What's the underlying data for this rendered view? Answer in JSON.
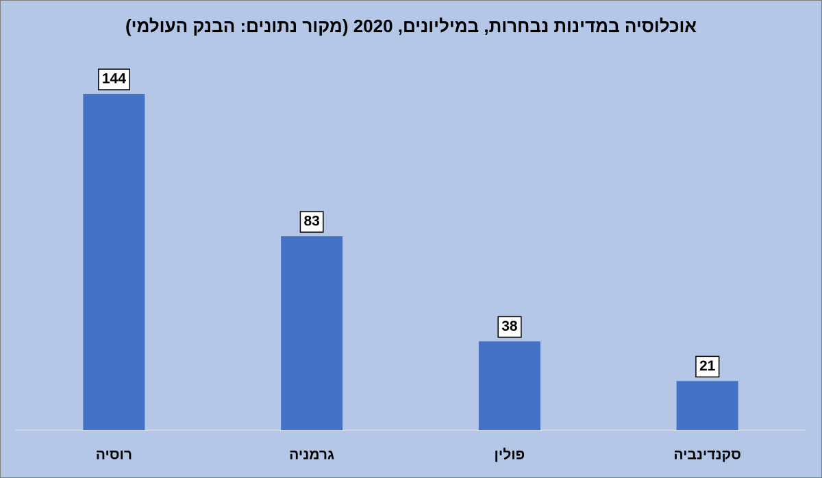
{
  "chart_data": {
    "type": "bar",
    "title": "אוכלוסיה במדינות נבחרות, במיליונים, 2020 (מקור נתונים: הבנק העולמי)",
    "categories": [
      "רוסיה",
      "גרמניה",
      "פולין",
      "סקנדינביה"
    ],
    "values": [
      144,
      83,
      38,
      21
    ],
    "color": "#4472c4",
    "background": "#b4c7e7"
  }
}
